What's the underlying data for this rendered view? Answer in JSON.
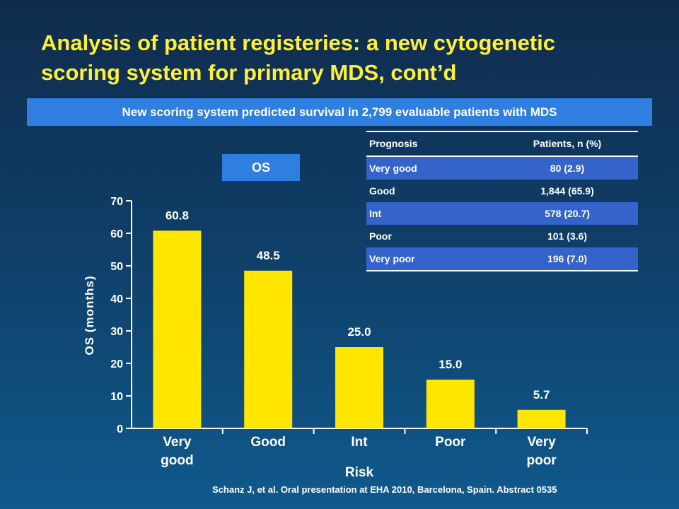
{
  "slide": {
    "title_line1": "Analysis of patient registeries: a new cytogenetic",
    "title_line2": "scoring system for primary MDS, cont’d",
    "banner": "New scoring system predicted survival in 2,799 evaluable patients with MDS",
    "os_label": "OS",
    "footnote": "Schanz J, et al. Oral presentation at EHA 2010, Barcelona, Spain. Abstract 0535",
    "colors": {
      "title": "#ffef3a",
      "bar": "#ffe600",
      "banner": "#2f7fe0",
      "table_shade": "#3463c9"
    }
  },
  "table": {
    "headers": [
      "Prognosis",
      "Patients, n (%)"
    ],
    "rows": [
      {
        "prognosis": "Very good",
        "patients": "80 (2.9)"
      },
      {
        "prognosis": "Good",
        "patients": "1,844 (65.9)"
      },
      {
        "prognosis": "Int",
        "patients": "578 (20.7)"
      },
      {
        "prognosis": "Poor",
        "patients": "101 (3.6)"
      },
      {
        "prognosis": "Very poor",
        "patients": "196 (7.0)"
      }
    ]
  },
  "chart_data": {
    "type": "bar",
    "categories": [
      [
        "Very",
        "good"
      ],
      [
        "Good"
      ],
      [
        "Int"
      ],
      [
        "Poor"
      ],
      [
        "Very",
        "poor"
      ]
    ],
    "values": [
      60.8,
      48.5,
      25.0,
      15.0,
      5.7
    ],
    "value_labels": [
      "60.8",
      "48.5",
      "25.0",
      "15.0",
      "5.7"
    ],
    "xlabel": "Risk",
    "ylabel": "OS (months)",
    "ylim": [
      0,
      70
    ],
    "yticks": [
      0,
      10,
      20,
      30,
      40,
      50,
      60,
      70
    ],
    "grid": false,
    "legend": "none"
  }
}
